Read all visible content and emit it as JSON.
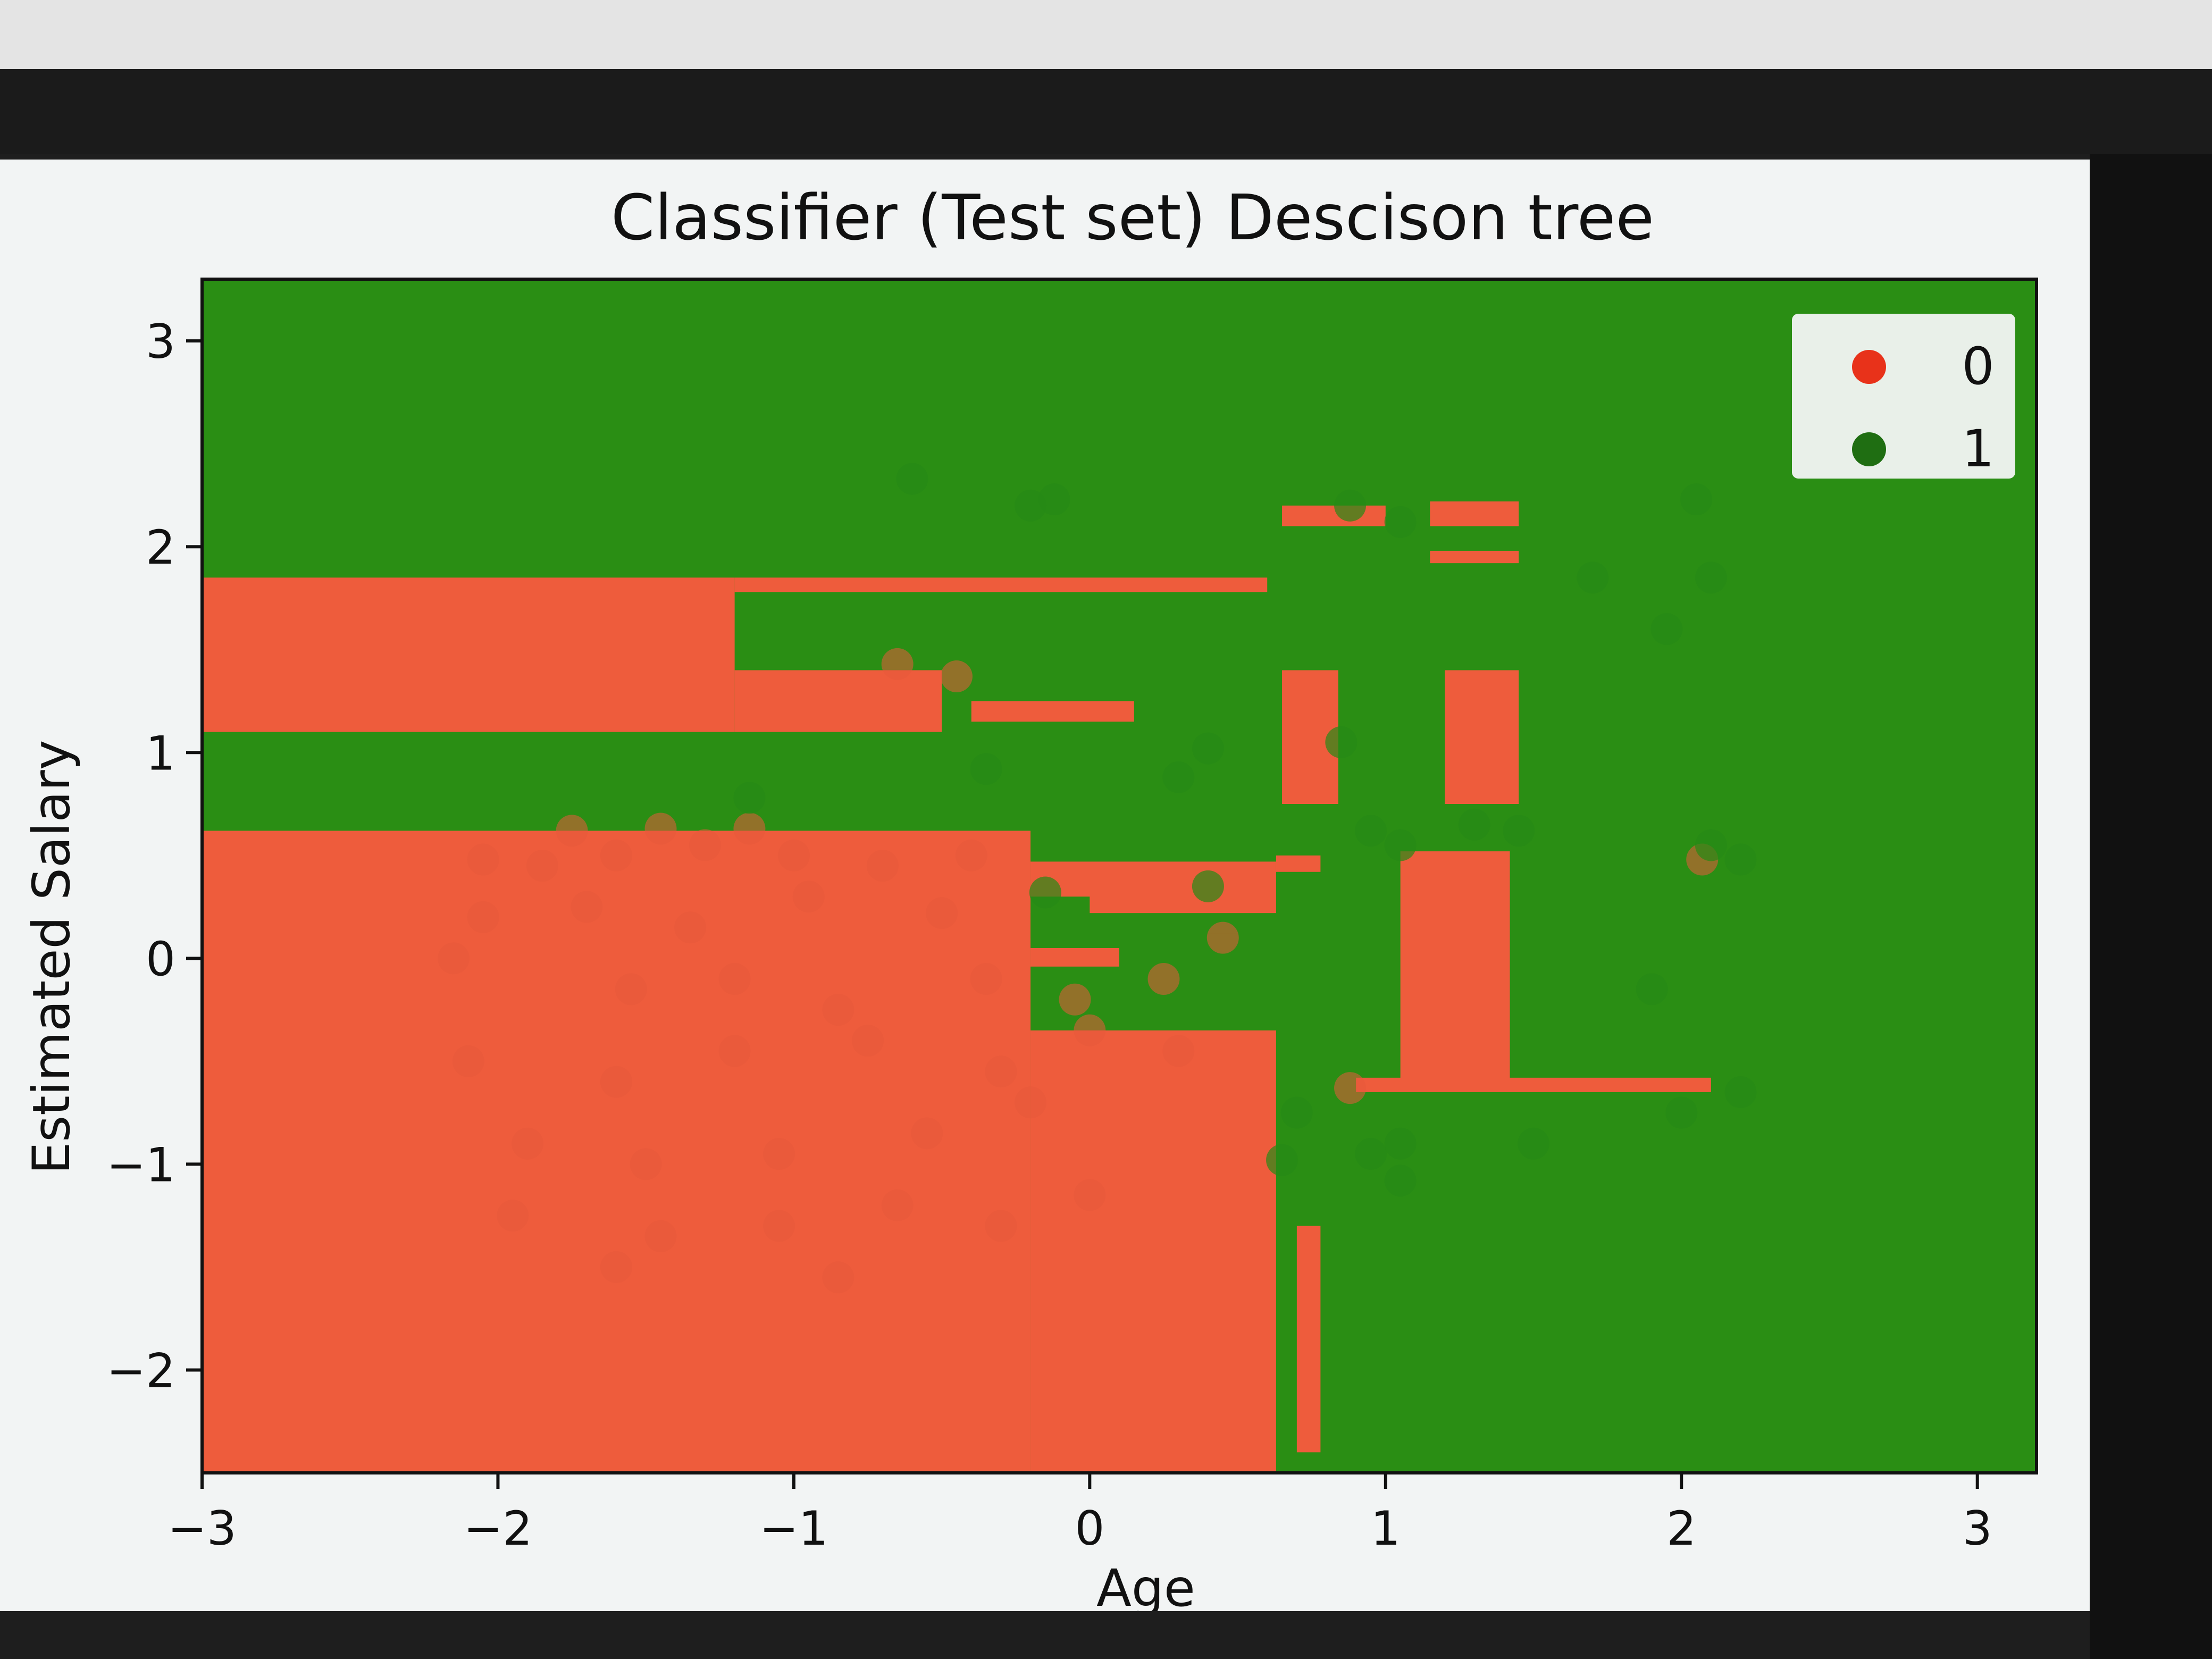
{
  "chart_data": {
    "type": "scatter",
    "title": "Classifier (Test set) Descison tree",
    "xlabel": "Age",
    "ylabel": "Estimated Salary",
    "xlim": [
      -3,
      3.2
    ],
    "ylim": [
      -2.5,
      3.3
    ],
    "xticks": [
      "−3",
      "−2",
      "−1",
      "0",
      "1",
      "2",
      "3"
    ],
    "yticks": [
      "−2",
      "−1",
      "0",
      "1",
      "2",
      "3"
    ],
    "legend_position": "top-right",
    "colors": {
      "class0": "#e85a3a",
      "class1": "#268a16",
      "region0": "#ee5c3c",
      "region1": "#2a8e14"
    },
    "series": [
      {
        "name": "0",
        "points": [
          [
            -0.65,
            1.43
          ],
          [
            -0.45,
            1.37
          ],
          [
            -1.75,
            0.62
          ],
          [
            -1.45,
            0.63
          ],
          [
            -1.15,
            0.63
          ],
          [
            -2.05,
            0.48
          ],
          [
            -1.85,
            0.45
          ],
          [
            -1.6,
            0.5
          ],
          [
            -1.3,
            0.55
          ],
          [
            -1.0,
            0.5
          ],
          [
            -0.7,
            0.45
          ],
          [
            -0.4,
            0.5
          ],
          [
            -2.05,
            0.2
          ],
          [
            -1.7,
            0.25
          ],
          [
            -1.35,
            0.15
          ],
          [
            -0.95,
            0.3
          ],
          [
            -0.5,
            0.22
          ],
          [
            -2.15,
            0.0
          ],
          [
            -1.55,
            -0.15
          ],
          [
            -1.2,
            -0.1
          ],
          [
            -0.85,
            -0.25
          ],
          [
            -0.35,
            -0.1
          ],
          [
            -0.05,
            -0.2
          ],
          [
            0.25,
            -0.1
          ],
          [
            0.45,
            0.1
          ],
          [
            -2.1,
            -0.5
          ],
          [
            -1.6,
            -0.6
          ],
          [
            -1.2,
            -0.45
          ],
          [
            -0.75,
            -0.4
          ],
          [
            -0.3,
            -0.55
          ],
          [
            0.0,
            -0.35
          ],
          [
            0.3,
            -0.45
          ],
          [
            -1.9,
            -0.9
          ],
          [
            -1.5,
            -1.0
          ],
          [
            -1.05,
            -0.95
          ],
          [
            -0.55,
            -0.85
          ],
          [
            -0.2,
            -0.7
          ],
          [
            -1.95,
            -1.25
          ],
          [
            -1.45,
            -1.35
          ],
          [
            -1.05,
            -1.3
          ],
          [
            -0.65,
            -1.2
          ],
          [
            -0.3,
            -1.3
          ],
          [
            0.0,
            -1.15
          ],
          [
            -1.6,
            -1.5
          ],
          [
            -0.85,
            -1.55
          ],
          [
            0.88,
            -0.63
          ],
          [
            2.07,
            0.48
          ]
        ]
      },
      {
        "name": "1",
        "points": [
          [
            -0.6,
            2.33
          ],
          [
            -0.12,
            2.23
          ],
          [
            -0.2,
            2.2
          ],
          [
            0.88,
            2.2
          ],
          [
            1.05,
            2.12
          ],
          [
            2.05,
            2.23
          ],
          [
            1.7,
            1.85
          ],
          [
            2.1,
            1.85
          ],
          [
            1.95,
            1.6
          ],
          [
            0.4,
            1.02
          ],
          [
            0.3,
            0.88
          ],
          [
            -0.35,
            0.92
          ],
          [
            0.85,
            1.05
          ],
          [
            -1.15,
            0.78
          ],
          [
            0.95,
            0.62
          ],
          [
            1.05,
            0.55
          ],
          [
            1.3,
            0.65
          ],
          [
            1.45,
            0.62
          ],
          [
            2.1,
            0.55
          ],
          [
            2.2,
            0.48
          ],
          [
            -0.15,
            0.32
          ],
          [
            0.4,
            0.35
          ],
          [
            1.9,
            -0.15
          ],
          [
            0.7,
            -0.75
          ],
          [
            2.2,
            -0.65
          ],
          [
            2.0,
            -0.75
          ],
          [
            1.5,
            -0.9
          ],
          [
            0.95,
            -0.95
          ],
          [
            1.05,
            -0.9
          ],
          [
            0.65,
            -0.98
          ],
          [
            1.05,
            -1.08
          ]
        ]
      }
    ]
  }
}
